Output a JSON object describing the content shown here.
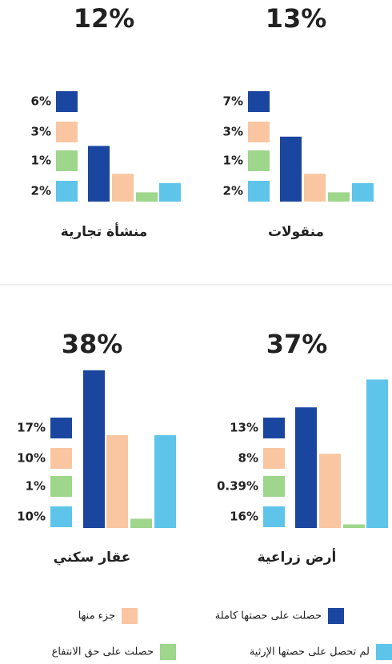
{
  "chart_data": [
    {
      "type": "bar",
      "title": "13%",
      "label": "منقولات",
      "values": [
        7,
        3,
        1,
        2
      ],
      "value_labels": [
        "7%",
        "3%",
        "1%",
        "2%"
      ]
    },
    {
      "type": "bar",
      "title": "12%",
      "label": "منشأة تجارية",
      "values": [
        6,
        3,
        1,
        2
      ],
      "value_labels": [
        "6%",
        "3%",
        "1%",
        "2%"
      ]
    },
    {
      "type": "bar",
      "title": "37%",
      "label": "أرض زراعية",
      "values": [
        13,
        8,
        0.39,
        16
      ],
      "value_labels": [
        "13%",
        "8%",
        "0.39%",
        "16%"
      ]
    },
    {
      "type": "bar",
      "title": "38%",
      "label": "عقار سكني",
      "values": [
        17,
        10,
        1,
        10
      ],
      "value_labels": [
        "17%",
        "10%",
        "1%",
        "10%"
      ]
    }
  ],
  "legend": [
    {
      "name": "حصلت على حصتها كاملة",
      "color": "#1b46a0"
    },
    {
      "name": "جزء منها",
      "color": "#f9c6a1"
    },
    {
      "name": "حصلت على حق الانتفاع",
      "color": "#9ed68b"
    },
    {
      "name": "لم تحصل على حصتها الإرثية",
      "color": "#5ec4ea"
    }
  ]
}
